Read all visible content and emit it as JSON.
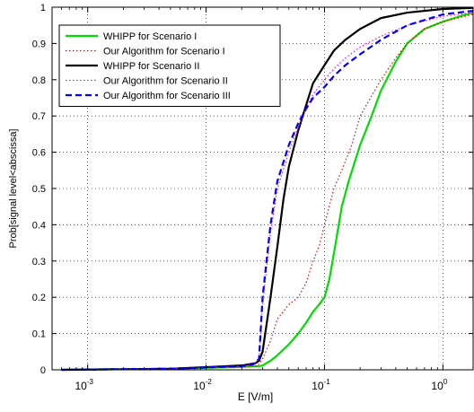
{
  "chart_data": {
    "type": "line",
    "title": "",
    "xlabel": "E [V/m]",
    "ylabel": "Prob[signal level<abscissa]",
    "xscale": "log",
    "xlim": [
      0.0005,
      1.8
    ],
    "ylim": [
      0,
      1
    ],
    "xticks": [
      {
        "value": 0.001,
        "base": "10",
        "exp": "-3"
      },
      {
        "value": 0.01,
        "base": "10",
        "exp": "-2"
      },
      {
        "value": 0.1,
        "base": "10",
        "exp": "-1"
      },
      {
        "value": 1,
        "base": "10",
        "exp": "0"
      }
    ],
    "yticks": [
      "0",
      "0.1",
      "0.2",
      "0.3",
      "0.4",
      "0.5",
      "0.6",
      "0.7",
      "0.8",
      "0.9",
      "1"
    ],
    "grid": true,
    "legend_position": "top-left",
    "series": [
      {
        "name": "WHIPP for Scenario I",
        "color": "#00dd00",
        "dash": "solid",
        "width": 2.2,
        "points": [
          [
            0.0006,
            0.0
          ],
          [
            0.005,
            0.003
          ],
          [
            0.02,
            0.008
          ],
          [
            0.028,
            0.01
          ],
          [
            0.03,
            0.012
          ],
          [
            0.035,
            0.025
          ],
          [
            0.04,
            0.04
          ],
          [
            0.05,
            0.07
          ],
          [
            0.06,
            0.1
          ],
          [
            0.07,
            0.13
          ],
          [
            0.08,
            0.16
          ],
          [
            0.09,
            0.18
          ],
          [
            0.1,
            0.2
          ],
          [
            0.11,
            0.25
          ],
          [
            0.12,
            0.32
          ],
          [
            0.14,
            0.45
          ],
          [
            0.16,
            0.52
          ],
          [
            0.2,
            0.62
          ],
          [
            0.25,
            0.7
          ],
          [
            0.3,
            0.77
          ],
          [
            0.4,
            0.85
          ],
          [
            0.5,
            0.9
          ],
          [
            0.7,
            0.94
          ],
          [
            1.0,
            0.96
          ],
          [
            1.4,
            0.975
          ],
          [
            1.8,
            0.985
          ]
        ]
      },
      {
        "name": "Our Algorithm for Scenario I",
        "color": "#ff0000",
        "dash": "dot",
        "width": 1.2,
        "points": [
          [
            0.0006,
            0.0
          ],
          [
            0.005,
            0.003
          ],
          [
            0.02,
            0.008
          ],
          [
            0.027,
            0.01
          ],
          [
            0.03,
            0.03
          ],
          [
            0.035,
            0.08
          ],
          [
            0.04,
            0.14
          ],
          [
            0.05,
            0.18
          ],
          [
            0.06,
            0.2
          ],
          [
            0.07,
            0.24
          ],
          [
            0.08,
            0.3
          ],
          [
            0.09,
            0.34
          ],
          [
            0.1,
            0.4
          ],
          [
            0.12,
            0.5
          ],
          [
            0.14,
            0.55
          ],
          [
            0.17,
            0.62
          ],
          [
            0.2,
            0.7
          ],
          [
            0.3,
            0.8
          ],
          [
            0.4,
            0.86
          ],
          [
            0.5,
            0.9
          ],
          [
            0.7,
            0.94
          ],
          [
            1.0,
            0.96
          ],
          [
            1.8,
            0.98
          ]
        ]
      },
      {
        "name": "WHIPP for Scenario II",
        "color": "#000000",
        "dash": "solid",
        "width": 2.2,
        "points": [
          [
            0.0006,
            0.0
          ],
          [
            0.005,
            0.003
          ],
          [
            0.02,
            0.012
          ],
          [
            0.026,
            0.018
          ],
          [
            0.028,
            0.025
          ],
          [
            0.03,
            0.05
          ],
          [
            0.035,
            0.2
          ],
          [
            0.04,
            0.34
          ],
          [
            0.045,
            0.47
          ],
          [
            0.05,
            0.56
          ],
          [
            0.06,
            0.66
          ],
          [
            0.07,
            0.73
          ],
          [
            0.08,
            0.79
          ],
          [
            0.1,
            0.84
          ],
          [
            0.12,
            0.88
          ],
          [
            0.15,
            0.91
          ],
          [
            0.2,
            0.94
          ],
          [
            0.3,
            0.97
          ],
          [
            0.5,
            0.985
          ],
          [
            1.0,
            0.995
          ],
          [
            1.8,
            0.998
          ]
        ]
      },
      {
        "name": "Our Algorithm for Scenario II",
        "color": "#ff00ff",
        "dash": "dot",
        "width": 1.2,
        "points": [
          [
            0.0006,
            0.0
          ],
          [
            0.005,
            0.003
          ],
          [
            0.02,
            0.01
          ],
          [
            0.025,
            0.015
          ],
          [
            0.028,
            0.03
          ],
          [
            0.03,
            0.18
          ],
          [
            0.035,
            0.38
          ],
          [
            0.04,
            0.5
          ],
          [
            0.05,
            0.6
          ],
          [
            0.06,
            0.67
          ],
          [
            0.07,
            0.72
          ],
          [
            0.08,
            0.76
          ],
          [
            0.1,
            0.8
          ],
          [
            0.12,
            0.83
          ],
          [
            0.15,
            0.86
          ],
          [
            0.2,
            0.89
          ],
          [
            0.3,
            0.92
          ],
          [
            0.5,
            0.95
          ],
          [
            1.0,
            0.975
          ],
          [
            1.8,
            0.985
          ]
        ]
      },
      {
        "name": "Our Algorithm for Scenario III",
        "color": "#0000ff",
        "dash": "dash",
        "width": 2.2,
        "points": [
          [
            0.0006,
            0.0
          ],
          [
            0.005,
            0.003
          ],
          [
            0.02,
            0.01
          ],
          [
            0.025,
            0.015
          ],
          [
            0.028,
            0.03
          ],
          [
            0.03,
            0.2
          ],
          [
            0.035,
            0.4
          ],
          [
            0.04,
            0.52
          ],
          [
            0.05,
            0.62
          ],
          [
            0.06,
            0.68
          ],
          [
            0.07,
            0.72
          ],
          [
            0.08,
            0.75
          ],
          [
            0.1,
            0.78
          ],
          [
            0.12,
            0.81
          ],
          [
            0.15,
            0.84
          ],
          [
            0.2,
            0.87
          ],
          [
            0.3,
            0.91
          ],
          [
            0.5,
            0.95
          ],
          [
            1.0,
            0.98
          ],
          [
            1.8,
            0.99
          ]
        ]
      }
    ]
  }
}
